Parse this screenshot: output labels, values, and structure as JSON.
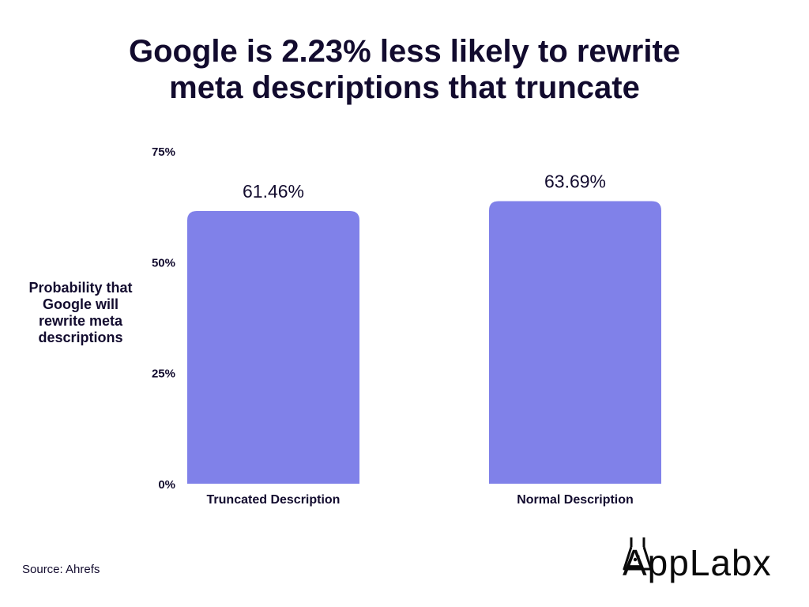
{
  "title_lines": [
    "Google is 2.23% less likely to rewrite",
    "meta descriptions that truncate"
  ],
  "ylabel_lines": [
    "Probability that",
    "Google will",
    "rewrite meta",
    "descriptions"
  ],
  "source": "Source:  Ahrefs",
  "logo": "AppLabx",
  "colors": {
    "bar": "#8081e9",
    "text": "#120b2e"
  },
  "chart_data": {
    "type": "bar",
    "title": "Google is 2.23% less likely to rewrite meta descriptions that truncate",
    "ylabel": "Probability that Google will rewrite meta descriptions",
    "xlabel": "",
    "categories": [
      "Truncated Description",
      "Normal Description"
    ],
    "values": [
      61.46,
      63.69
    ],
    "value_labels": [
      "61.46%",
      "63.69%"
    ],
    "yticks": [
      "0%",
      "25%",
      "50%",
      "75%"
    ],
    "ylim": [
      0,
      75
    ],
    "grid": false,
    "legend": "none"
  }
}
